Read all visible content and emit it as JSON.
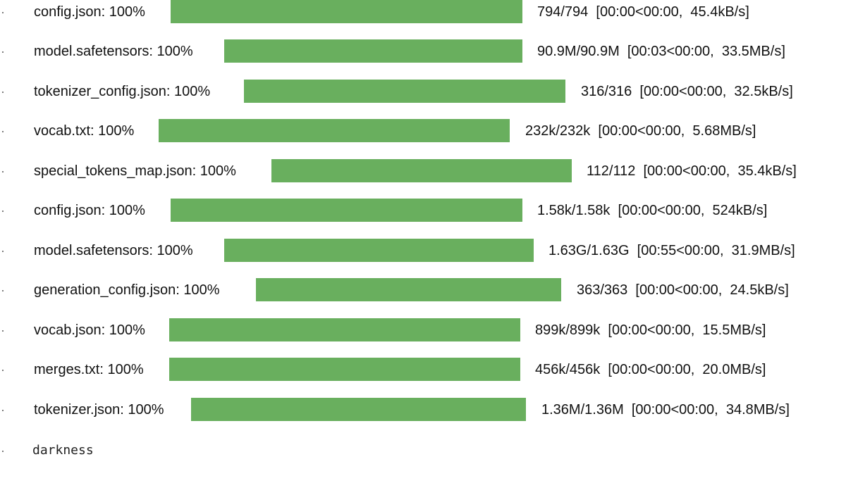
{
  "accent_color": "#69af5e",
  "bullet_char": "·",
  "downloads": [
    {
      "label": "config.json:  100%",
      "progress": 1.0,
      "stats": "794/794  [00:00<00:00,  45.4kB/s]"
    },
    {
      "label": "model.safetensors:  100%",
      "progress": 1.0,
      "stats": "90.9M/90.9M  [00:03<00:00,  33.5MB/s]"
    },
    {
      "label": "tokenizer_config.json:  100%",
      "progress": 1.0,
      "stats": "316/316  [00:00<00:00,  32.5kB/s]"
    },
    {
      "label": "vocab.txt:  100%",
      "progress": 1.0,
      "stats": "232k/232k  [00:00<00:00,  5.68MB/s]"
    },
    {
      "label": "special_tokens_map.json:  100%",
      "progress": 1.0,
      "stats": "112/112  [00:00<00:00,  35.4kB/s]"
    },
    {
      "label": "config.json:  100%",
      "progress": 1.0,
      "stats": "1.58k/1.58k  [00:00<00:00,  524kB/s]"
    },
    {
      "label": "model.safetensors:  100%",
      "progress": 1.0,
      "stats": "1.63G/1.63G  [00:55<00:00,  31.9MB/s]"
    },
    {
      "label": "generation_config.json:  100%",
      "progress": 1.0,
      "stats": "363/363  [00:00<00:00,  24.5kB/s]"
    },
    {
      "label": "vocab.json:  100%",
      "progress": 1.0,
      "stats": "899k/899k  [00:00<00:00,  15.5MB/s]"
    },
    {
      "label": "merges.txt:  100%",
      "progress": 1.0,
      "stats": "456k/456k  [00:00<00:00,  20.0MB/s]"
    },
    {
      "label": "tokenizer.json:  100%",
      "progress": 1.0,
      "stats": "1.36M/1.36M  [00:00<00:00,  34.8MB/s]"
    }
  ],
  "trailing_output": "darkness"
}
